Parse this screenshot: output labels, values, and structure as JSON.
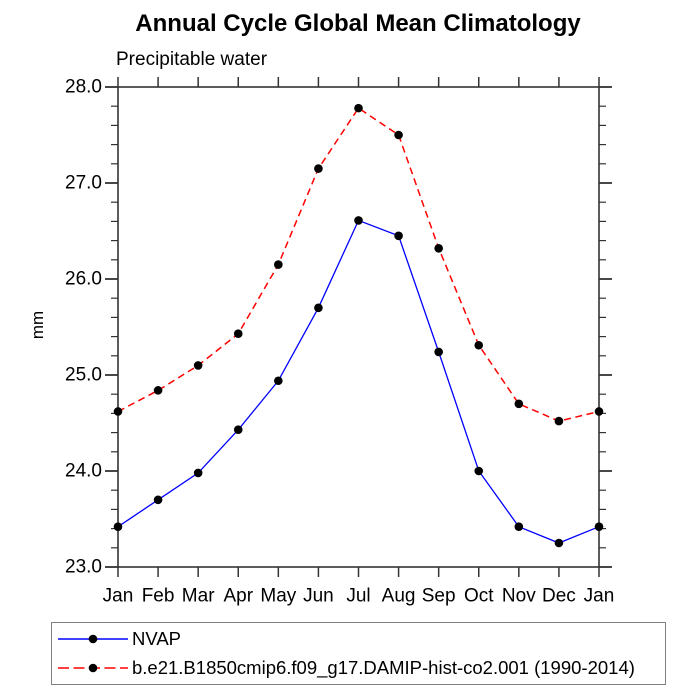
{
  "title": "Annual Cycle Global Mean Climatology",
  "subtitle": "Precipitable water",
  "y_axis": {
    "label": "mm",
    "tick_labels": [
      "23.0",
      "24.0",
      "25.0",
      "26.0",
      "27.0",
      "28.0"
    ]
  },
  "x_axis": {
    "tick_labels": [
      "Jan",
      "Feb",
      "Mar",
      "Apr",
      "May",
      "Jun",
      "Jul",
      "Aug",
      "Sep",
      "Oct",
      "Nov",
      "Dec",
      "Jan"
    ]
  },
  "legend": {
    "items": [
      {
        "label": "NVAP",
        "color": "#0000ff",
        "line_style": "solid",
        "marker": "filled-circle",
        "marker_color": "#000000"
      },
      {
        "label": "b.e21.B1850cmip6.f09_g17.DAMIP-hist-co2.001 (1990-2014)",
        "color": "#ff0000",
        "line_style": "dashed",
        "marker": "filled-circle",
        "marker_color": "#000000"
      }
    ]
  },
  "chart_data": {
    "type": "line",
    "title": "Annual Cycle Global Mean Climatology",
    "subtitle": "Precipitable water",
    "ylabel": "mm",
    "xlabel": "",
    "categories": [
      "Jan",
      "Feb",
      "Mar",
      "Apr",
      "May",
      "Jun",
      "Jul",
      "Aug",
      "Sep",
      "Oct",
      "Nov",
      "Dec",
      "Jan"
    ],
    "ylim": [
      23.0,
      28.0
    ],
    "ytick_major": 1.0,
    "ytick_minor": 0.2,
    "grid": false,
    "legend_position": "bottom",
    "series": [
      {
        "name": "NVAP",
        "color": "#0000ff",
        "line_style": "solid",
        "marker": "filled-circle",
        "marker_color": "#000000",
        "values": [
          23.42,
          23.7,
          23.98,
          24.43,
          24.94,
          25.7,
          26.61,
          26.45,
          25.24,
          24.0,
          23.42,
          23.25,
          23.42
        ]
      },
      {
        "name": "b.e21.B1850cmip6.f09_g17.DAMIP-hist-co2.001 (1990-2014)",
        "color": "#ff0000",
        "line_style": "dashed",
        "marker": "filled-circle",
        "marker_color": "#000000",
        "values": [
          24.62,
          24.84,
          25.1,
          25.43,
          26.15,
          27.15,
          27.78,
          27.5,
          26.32,
          25.31,
          24.7,
          24.52,
          24.62
        ]
      }
    ]
  }
}
